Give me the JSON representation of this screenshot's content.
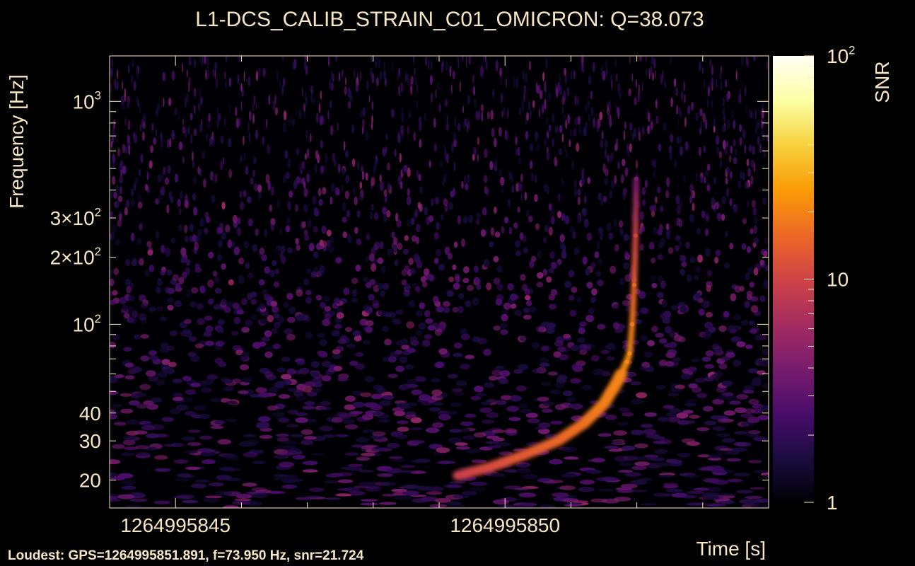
{
  "colors": {
    "background": "#000000",
    "text": "#f7e6c3",
    "colormap": "inferno",
    "colormap_stops": [
      "#000004",
      "#1b0c41",
      "#4a0c6b",
      "#781c6d",
      "#a52c60",
      "#cf4446",
      "#ed6925",
      "#fb9b06",
      "#f7d13d",
      "#fcffa4",
      "#fffef6"
    ]
  },
  "chart_data": {
    "type": "heatmap",
    "title": "L1-DCS_CALIB_STRAIN_C01_OMICRON: Q=38.073",
    "xlabel": "Time [s]",
    "ylabel": "Frequency [Hz]",
    "colorbar_label": "SNR",
    "footer": "Loudest: GPS=1264995851.891, f=73.950 Hz, snr=21.724",
    "x_scale": "linear",
    "y_scale": "log",
    "color_scale": "log",
    "xlim": [
      1264995844.0,
      1264995854.0
    ],
    "ylim": [
      15,
      1600
    ],
    "clim": [
      1,
      100
    ],
    "x_tick_labels": [
      {
        "value": 1264995845,
        "label": "1264995845"
      },
      {
        "value": 1264995850,
        "label": "1264995850"
      }
    ],
    "y_tick_labels": [
      {
        "value": 20,
        "mantissa": "20",
        "exp": ""
      },
      {
        "value": 30,
        "mantissa": "30",
        "exp": ""
      },
      {
        "value": 40,
        "mantissa": "40",
        "exp": ""
      },
      {
        "value": 100,
        "mantissa": "10",
        "exp": "2"
      },
      {
        "value": 200,
        "mantissa": "2×10",
        "exp": "2"
      },
      {
        "value": 300,
        "mantissa": "3×10",
        "exp": "2"
      },
      {
        "value": 1000,
        "mantissa": "10",
        "exp": "3"
      }
    ],
    "colorbar_tick_labels": [
      {
        "value": 1,
        "mantissa": "1",
        "exp": ""
      },
      {
        "value": 10,
        "mantissa": "10",
        "exp": ""
      },
      {
        "value": 100,
        "mantissa": "10",
        "exp": "2"
      }
    ],
    "chirp_track": [
      {
        "t": 1264995849.3,
        "f": 21,
        "snr": 9
      },
      {
        "t": 1264995849.8,
        "f": 23,
        "snr": 11
      },
      {
        "t": 1264995850.3,
        "f": 26,
        "snr": 13
      },
      {
        "t": 1264995850.8,
        "f": 30,
        "snr": 15
      },
      {
        "t": 1264995851.2,
        "f": 36,
        "snr": 17
      },
      {
        "t": 1264995851.5,
        "f": 44,
        "snr": 19
      },
      {
        "t": 1264995851.7,
        "f": 55,
        "snr": 20
      },
      {
        "t": 1264995851.85,
        "f": 68,
        "snr": 21
      },
      {
        "t": 1264995851.891,
        "f": 73.95,
        "snr": 21.724
      },
      {
        "t": 1264995851.93,
        "f": 100,
        "snr": 19
      },
      {
        "t": 1264995851.96,
        "f": 150,
        "snr": 15
      },
      {
        "t": 1264995851.98,
        "f": 250,
        "snr": 10
      },
      {
        "t": 1264995851.99,
        "f": 450,
        "snr": 4
      }
    ]
  }
}
